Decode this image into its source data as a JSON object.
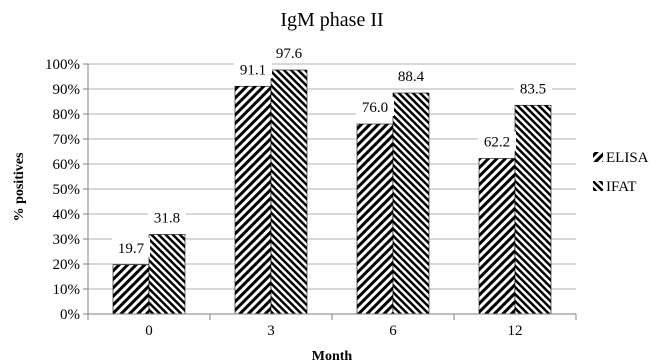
{
  "chart_data": {
    "type": "bar",
    "title": "IgM phase II",
    "xlabel": "Month",
    "ylabel": "% positives",
    "categories": [
      "0",
      "3",
      "6",
      "12"
    ],
    "series": [
      {
        "name": "ELISA",
        "values": [
          19.7,
          91.1,
          76.0,
          62.2
        ],
        "labels": [
          "19.7",
          "91.1",
          "76.0",
          "62.2"
        ],
        "pattern": "forward-diagonal"
      },
      {
        "name": "IFAT",
        "values": [
          31.8,
          97.6,
          88.4,
          83.5
        ],
        "labels": [
          "31.8",
          "97.6",
          "88.4",
          "83.5"
        ],
        "pattern": "backward-diagonal"
      }
    ],
    "ylim": [
      0,
      100
    ],
    "yticks": [
      "0%",
      "10%",
      "20%",
      "30%",
      "40%",
      "50%",
      "60%",
      "70%",
      "80%",
      "90%",
      "100%"
    ],
    "grid": true,
    "legend": "right",
    "colors": {
      "bar_stroke": "#000000",
      "hatch": "#000000",
      "grid": "#b0b0b0",
      "axis": "#808080"
    }
  }
}
